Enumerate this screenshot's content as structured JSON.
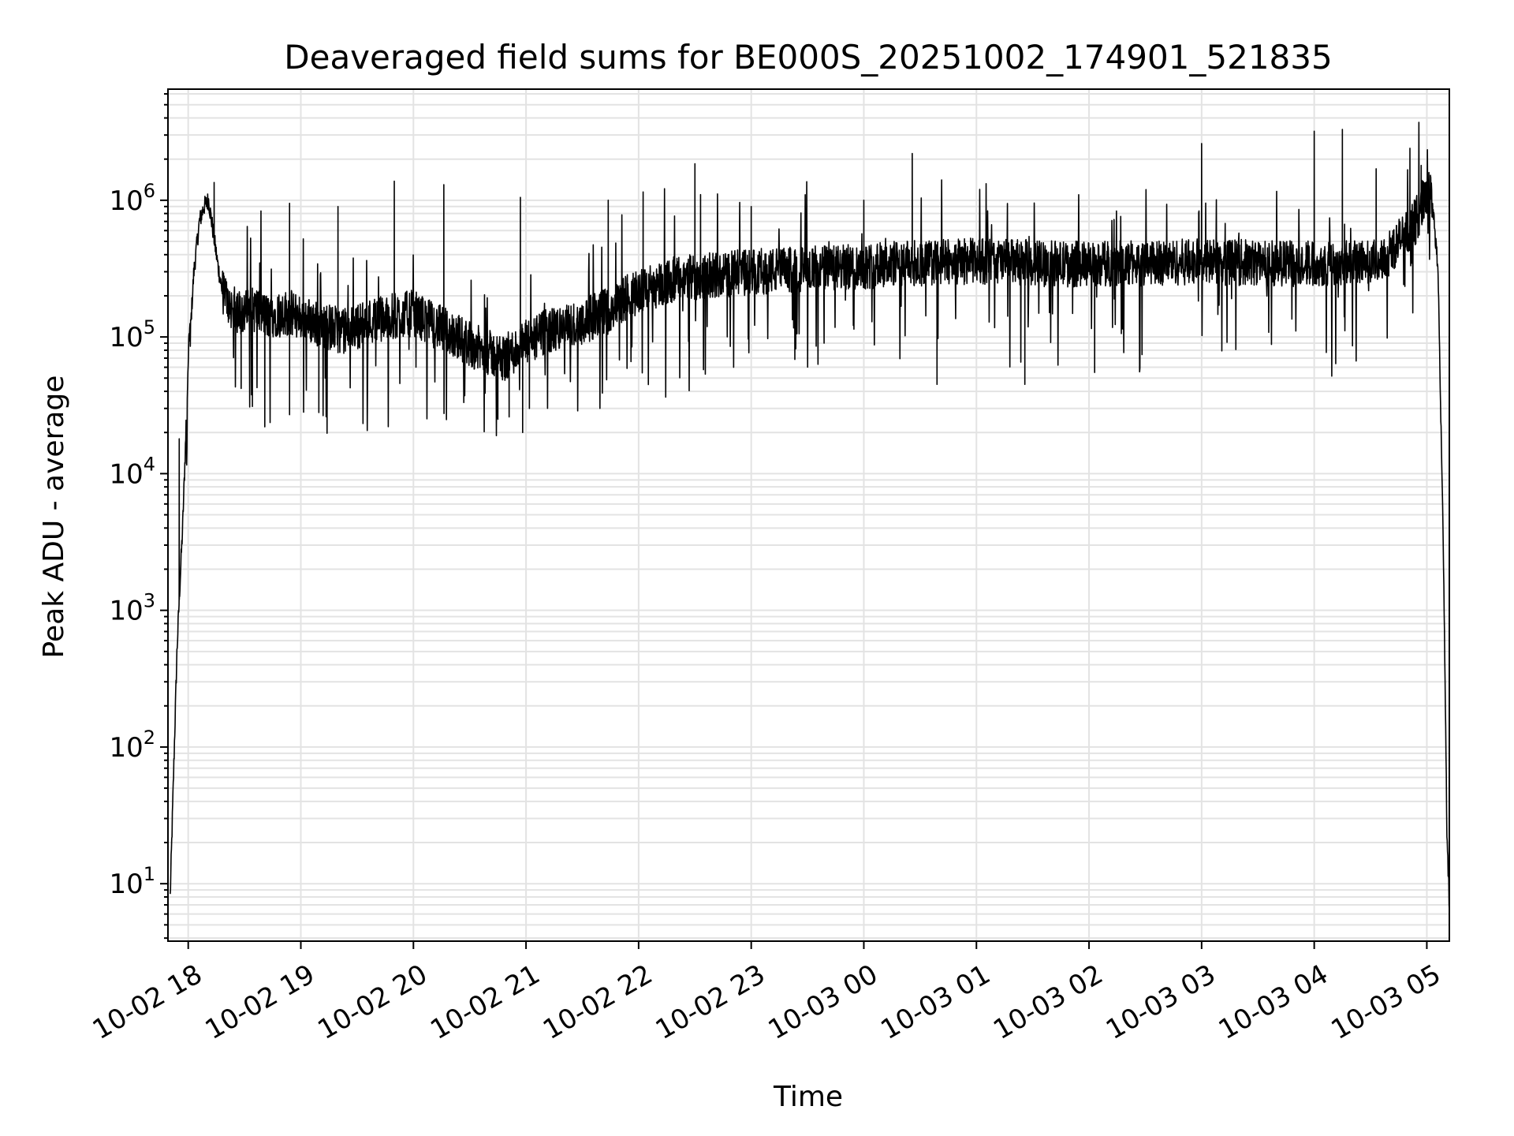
{
  "chart_data": {
    "type": "line",
    "title": "Deaveraged field sums for BE000S_20251002_174901_521835",
    "xlabel": "Time",
    "ylabel": "Peak ADU - average",
    "yscale": "log",
    "ylim": [
      3.8,
      6500000
    ],
    "xlim_hours": [
      -0.18,
      11.2
    ],
    "grid": true,
    "line_color": "#000000",
    "x_ticks": [
      {
        "hour": 0,
        "label": "10-02 18"
      },
      {
        "hour": 1,
        "label": "10-02 19"
      },
      {
        "hour": 2,
        "label": "10-02 20"
      },
      {
        "hour": 3,
        "label": "10-02 21"
      },
      {
        "hour": 4,
        "label": "10-02 22"
      },
      {
        "hour": 5,
        "label": "10-02 23"
      },
      {
        "hour": 6,
        "label": "10-03 00"
      },
      {
        "hour": 7,
        "label": "10-03 01"
      },
      {
        "hour": 8,
        "label": "10-03 02"
      },
      {
        "hour": 9,
        "label": "10-03 03"
      },
      {
        "hour": 10,
        "label": "10-03 04"
      },
      {
        "hour": 11,
        "label": "10-03 05"
      }
    ],
    "y_ticks": [
      {
        "value": 10,
        "base": "10",
        "exp": "1"
      },
      {
        "value": 100,
        "base": "10",
        "exp": "2"
      },
      {
        "value": 1000,
        "base": "10",
        "exp": "3"
      },
      {
        "value": 10000,
        "base": "10",
        "exp": "4"
      },
      {
        "value": 100000,
        "base": "10",
        "exp": "5"
      },
      {
        "value": 1000000,
        "base": "10",
        "exp": "6"
      }
    ],
    "series": [
      {
        "name": "field sums",
        "x_hours": [
          -0.16,
          -0.1,
          -0.08,
          -0.05,
          0.0,
          0.05,
          0.1,
          0.14,
          0.18,
          0.22,
          0.26,
          0.3,
          0.35,
          0.4,
          0.5,
          0.6,
          0.7,
          0.8,
          0.9,
          1.0,
          1.2,
          1.4,
          1.6,
          1.8,
          2.0,
          2.2,
          2.4,
          2.6,
          2.8,
          3.0,
          3.2,
          3.4,
          3.6,
          3.8,
          4.0,
          4.3,
          4.6,
          5.0,
          5.4,
          5.8,
          6.2,
          6.6,
          7.0,
          7.4,
          7.8,
          8.2,
          8.6,
          9.0,
          9.4,
          9.8,
          10.2,
          10.6,
          10.9,
          11.0,
          11.05,
          11.1,
          11.15,
          11.18,
          11.2
        ],
        "y": [
          8,
          500,
          1200,
          4000,
          60000,
          300000,
          700000,
          900000,
          1000000,
          600000,
          350000,
          220000,
          180000,
          160000,
          150000,
          160000,
          140000,
          150000,
          150000,
          140000,
          120000,
          110000,
          130000,
          140000,
          150000,
          120000,
          100000,
          80000,
          70000,
          90000,
          110000,
          120000,
          140000,
          170000,
          220000,
          260000,
          280000,
          300000,
          310000,
          320000,
          340000,
          350000,
          360000,
          350000,
          340000,
          345000,
          350000,
          355000,
          350000,
          345000,
          350000,
          360000,
          700000,
          1200000,
          1000000,
          300000,
          2000,
          20,
          7
        ],
        "spikes": [
          {
            "h": -0.08,
            "v": 18000
          },
          {
            "h": 0.23,
            "v": 1350000
          },
          {
            "h": 0.47,
            "v": 42000
          },
          {
            "h": 0.57,
            "v": 31000
          },
          {
            "h": 0.68,
            "v": 22000
          },
          {
            "h": 0.9,
            "v": 950000
          },
          {
            "h": 0.9,
            "v": 27000
          },
          {
            "h": 1.16,
            "v": 28000
          },
          {
            "h": 1.33,
            "v": 900000
          },
          {
            "h": 1.83,
            "v": 1380000
          },
          {
            "h": 2.27,
            "v": 1300000
          },
          {
            "h": 2.75,
            "v": 25000
          },
          {
            "h": 2.85,
            "v": 26000
          },
          {
            "h": 2.95,
            "v": 1050000
          },
          {
            "h": 2.97,
            "v": 20000
          },
          {
            "h": 3.03,
            "v": 30000
          },
          {
            "h": 3.73,
            "v": 1000000
          },
          {
            "h": 4.04,
            "v": 1150000
          },
          {
            "h": 4.5,
            "v": 1850000
          },
          {
            "h": 4.55,
            "v": 1100000
          },
          {
            "h": 5.0,
            "v": 900000
          },
          {
            "h": 6.0,
            "v": 1000000
          },
          {
            "h": 6.43,
            "v": 2200000
          },
          {
            "h": 6.65,
            "v": 45000
          },
          {
            "h": 7.43,
            "v": 45000
          },
          {
            "h": 8.05,
            "v": 55000
          },
          {
            "h": 9.0,
            "v": 2600000
          },
          {
            "h": 10.0,
            "v": 3200000
          },
          {
            "h": 10.25,
            "v": 3300000
          },
          {
            "h": 10.55,
            "v": 1700000
          },
          {
            "h": 10.85,
            "v": 2400000
          },
          {
            "h": 10.95,
            "v": 1800000
          }
        ]
      }
    ]
  }
}
